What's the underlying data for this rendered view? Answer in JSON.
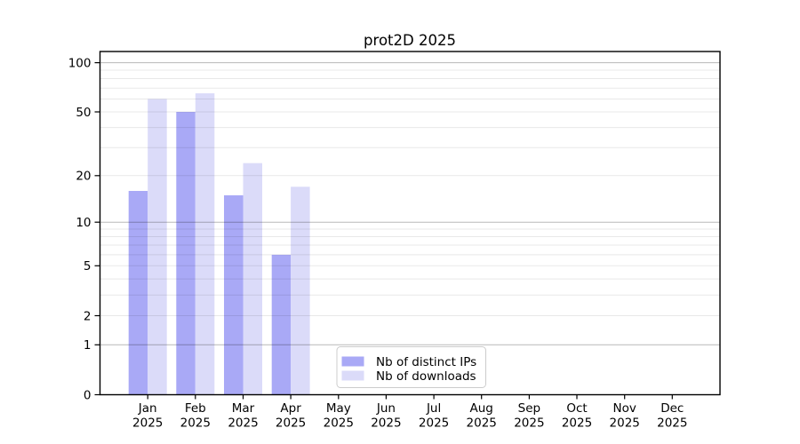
{
  "figure": {
    "title": "prot2D 2025"
  },
  "chart_data": {
    "type": "bar",
    "title": "prot2D 2025",
    "x_categories": [
      "Jan",
      "Feb",
      "Mar",
      "Apr",
      "May",
      "Jun",
      "Jul",
      "Aug",
      "Sep",
      "Oct",
      "Nov",
      "Dec"
    ],
    "x_year_label": "2025",
    "series": [
      {
        "name": "Nb of distinct IPs",
        "color": "#a9a9f6",
        "values": [
          16,
          50,
          15,
          6,
          0,
          0,
          0,
          0,
          0,
          0,
          0,
          0
        ]
      },
      {
        "name": "Nb of downloads",
        "color": "#dbdbf9",
        "values": [
          60,
          65,
          24,
          17,
          0,
          0,
          0,
          0,
          0,
          0,
          0,
          0
        ]
      }
    ],
    "y_scale": "log1p",
    "ylim": [
      0,
      117
    ],
    "y_ticks_labeled": [
      0,
      1,
      2,
      5,
      10,
      20,
      50,
      100
    ],
    "y_major_gridlines": [
      1,
      10,
      100
    ],
    "y_minor_gridlines": [
      2,
      3,
      4,
      5,
      6,
      7,
      8,
      9,
      20,
      30,
      40,
      50,
      60,
      70,
      80,
      90
    ],
    "grid": "both",
    "legend": {
      "position": "lower center",
      "entries": [
        "Nb of distinct IPs",
        "Nb of downloads"
      ]
    }
  }
}
